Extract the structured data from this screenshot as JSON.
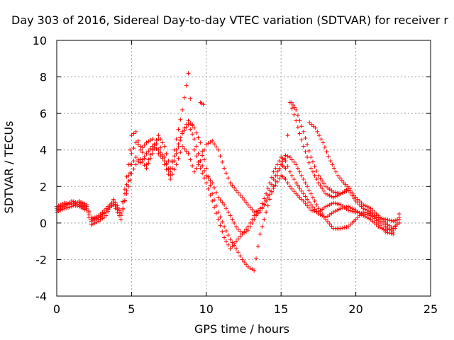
{
  "chart_data": {
    "type": "scatter",
    "title": "Day 303 of 2016, Sidereal Day-to-day VTEC variation (SDTVAR) for receiver r",
    "xlabel": "GPS time / hours",
    "ylabel": "SDTVAR / TECUs",
    "xlim": [
      0,
      25
    ],
    "ylim": [
      -4,
      10
    ],
    "xticks": [
      0,
      5,
      10,
      15,
      20,
      25
    ],
    "yticks": [
      -4,
      -2,
      0,
      2,
      4,
      6,
      8,
      10
    ],
    "grid": true,
    "marker": "+",
    "color": "#ff0000",
    "series": [
      {
        "x": [
          0.0,
          0.5,
          1.0,
          1.5,
          2.0,
          2.3,
          2.8,
          3.3,
          3.8,
          4.3,
          4.8,
          5.0,
          5.3,
          5.6,
          6.0,
          6.4,
          6.8,
          7.2,
          7.6,
          8.0,
          8.4,
          8.8,
          9.2,
          9.6,
          10.0,
          10.4,
          10.8,
          11.2,
          11.6,
          12.0,
          12.4,
          12.8,
          13.2,
          13.6,
          14.0,
          14.5,
          15.0,
          15.3,
          15.6,
          16.0,
          16.5,
          17.0,
          17.5,
          18.0,
          18.5,
          19.0,
          19.5,
          20.0,
          20.5,
          21.0,
          21.5,
          22.0,
          22.5,
          22.9
        ],
        "y": [
          0.8,
          1.0,
          1.1,
          1.0,
          0.8,
          0.1,
          0.3,
          0.6,
          1.1,
          0.4,
          2.0,
          2.7,
          3.2,
          3.5,
          3.0,
          3.8,
          4.6,
          3.2,
          2.4,
          3.2,
          4.2,
          3.8,
          2.8,
          3.4,
          4.3,
          4.5,
          4.0,
          3.0,
          2.2,
          1.8,
          1.4,
          1.0,
          0.6,
          0.7,
          1.2,
          1.9,
          2.6,
          2.4,
          2.0,
          1.6,
          1.2,
          0.7,
          0.6,
          0.9,
          1.1,
          1.0,
          0.7,
          0.6,
          0.5,
          0.4,
          0.3,
          0.2,
          0.1,
          0.2
        ]
      },
      {
        "x": [
          0.0,
          0.5,
          1.0,
          1.5,
          2.0,
          2.3,
          2.8,
          3.3,
          3.8,
          4.3,
          4.8,
          5.0,
          5.3,
          5.6,
          6.0,
          6.4,
          6.8,
          7.2,
          7.6,
          8.0,
          8.4,
          8.8,
          9.2,
          9.6,
          10.0,
          10.4,
          10.8,
          11.2,
          11.6,
          12.0,
          12.4,
          12.8,
          13.2,
          13.6,
          14.0,
          14.5,
          15.0,
          15.3,
          15.6,
          16.0,
          16.5,
          17.0,
          17.5,
          18.0,
          18.5,
          19.0,
          19.5,
          20.0,
          20.5,
          21.0,
          21.5,
          22.0,
          22.5,
          22.9
        ],
        "y": [
          0.6,
          0.8,
          0.9,
          1.2,
          1.0,
          0.3,
          0.2,
          0.7,
          1.0,
          0.2,
          2.3,
          3.2,
          3.6,
          3.3,
          3.8,
          4.2,
          4.0,
          3.6,
          2.6,
          3.8,
          4.9,
          5.4,
          4.6,
          3.4,
          2.6,
          2.2,
          1.4,
          1.0,
          0.4,
          -0.2,
          -0.6,
          -0.4,
          0.2,
          0.8,
          1.6,
          2.8,
          3.6,
          3.4,
          2.8,
          2.2,
          1.6,
          1.0,
          0.5,
          0.3,
          0.6,
          0.8,
          0.9,
          0.7,
          0.4,
          0.2,
          -0.2,
          -0.4,
          -0.3,
          0.0
        ]
      },
      {
        "x": [
          0.0,
          0.5,
          1.0,
          1.5,
          2.0,
          2.3,
          2.8,
          3.3,
          3.8,
          4.3,
          4.8,
          5.0,
          5.3,
          5.6,
          6.0,
          6.4,
          6.8,
          7.2,
          7.6,
          8.0,
          8.4,
          8.8,
          9.2,
          9.6,
          10.0,
          10.4,
          10.8,
          11.2,
          11.6,
          12.0,
          12.4,
          12.8,
          13.2,
          13.6,
          14.0,
          14.5,
          15.0,
          15.3,
          15.6,
          16.0,
          16.5,
          17.0,
          17.5,
          18.0,
          18.5,
          19.0,
          19.5,
          20.0,
          20.5,
          21.0,
          21.5,
          22.0,
          22.5,
          22.9
        ],
        "y": [
          0.9,
          1.1,
          1.0,
          0.9,
          0.7,
          -0.1,
          0.1,
          0.4,
          1.3,
          0.6,
          2.6,
          3.8,
          4.4,
          4.2,
          3.2,
          4.0,
          4.8,
          4.2,
          3.0,
          4.0,
          5.0,
          5.6,
          5.2,
          4.4,
          3.0,
          1.6,
          0.6,
          -0.2,
          -0.9,
          -1.4,
          -2.0,
          -2.4,
          -2.6,
          -0.6,
          0.6,
          2.0,
          3.2,
          3.7,
          3.6,
          3.2,
          2.4,
          1.6,
          0.8,
          0.2,
          -0.3,
          -0.3,
          -0.2,
          0.2,
          0.6,
          0.5,
          0.0,
          -0.5,
          -0.6,
          0.3
        ]
      },
      {
        "x": [
          0.0,
          0.5,
          1.0,
          1.5,
          2.0,
          2.3,
          2.8,
          3.3,
          3.8,
          4.3,
          4.8,
          5.0,
          5.3,
          5.6,
          6.0,
          6.4,
          6.8,
          7.2,
          7.6,
          8.0,
          8.4,
          8.8,
          9.2,
          9.6,
          10.0,
          10.4,
          10.8,
          11.2,
          11.6,
          12.0,
          12.4,
          12.8,
          13.2,
          13.6,
          14.0,
          14.5,
          15.0,
          15.3,
          15.6,
          16.0,
          16.5,
          17.0,
          17.5,
          18.0,
          18.5,
          19.0,
          19.5,
          20.0,
          20.5,
          21.0,
          21.5,
          22.0,
          22.5,
          22.9
        ],
        "y": [
          0.7,
          0.9,
          1.2,
          1.1,
          0.9,
          0.2,
          0.4,
          0.8,
          1.2,
          0.5,
          3.2,
          4.8,
          5.0,
          4.0,
          4.4,
          4.6,
          3.8,
          3.4,
          2.8,
          4.6,
          6.2,
          8.2,
          4.0,
          3.0,
          2.2,
          1.2,
          0.2,
          -0.8,
          -1.4,
          -1.0,
          -0.6,
          -0.2,
          0.4,
          0.6,
          1.2,
          2.4,
          3.2,
          3.0,
          6.6,
          5.6,
          4.2,
          3.0,
          2.2,
          1.6,
          1.4,
          1.6,
          1.8,
          1.2,
          0.8,
          0.6,
          0.2,
          -0.2,
          -0.5,
          0.5
        ]
      },
      {
        "x": [
          15.7,
          16.0,
          16.5,
          17.0,
          17.5,
          18.0,
          18.5,
          19.0,
          19.5,
          20.0,
          20.5,
          21.0,
          21.5,
          22.0,
          22.5,
          22.9
        ],
        "y": [
          6.6,
          6.2,
          5.0,
          3.6,
          2.6,
          2.0,
          1.7,
          1.6,
          1.9,
          1.4,
          1.0,
          0.8,
          0.4,
          0.0,
          -0.3,
          0.0
        ]
      },
      {
        "x": [
          16.9,
          17.3,
          17.8,
          18.3,
          18.8,
          19.2,
          19.6
        ],
        "y": [
          5.5,
          5.2,
          4.4,
          3.4,
          2.6,
          2.2,
          1.9
        ]
      },
      {
        "x": [
          9.6,
          9.8
        ],
        "y": [
          6.6,
          6.5
        ]
      }
    ]
  }
}
